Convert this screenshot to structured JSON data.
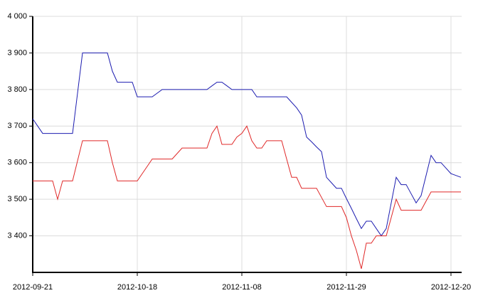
{
  "chart_data": {
    "type": "line",
    "categories": [
      "2012-09-21",
      null,
      null,
      null,
      null,
      null,
      null,
      null,
      null,
      null,
      null,
      null,
      null,
      null,
      null,
      null,
      null,
      null,
      null,
      null,
      null,
      "2012-10-18",
      null,
      null,
      null,
      null,
      null,
      null,
      null,
      null,
      null,
      null,
      null,
      null,
      null,
      null,
      null,
      null,
      null,
      null,
      null,
      null,
      "2012-11-08",
      null,
      null,
      null,
      null,
      null,
      null,
      null,
      null,
      null,
      null,
      null,
      null,
      null,
      null,
      null,
      null,
      null,
      null,
      null,
      null,
      "2012-11-29",
      null,
      null,
      null,
      null,
      null,
      null,
      null,
      null,
      null,
      null,
      null,
      null,
      null,
      null,
      null,
      null,
      null,
      null,
      null,
      null,
      "2012-12-20",
      null,
      null
    ],
    "series": [
      {
        "color": "#1c1cb0",
        "values": [
          3720,
          3700,
          3680,
          3680,
          3680,
          3680,
          3680,
          3680,
          3680,
          3790,
          3900,
          3900,
          3900,
          3900,
          3900,
          3900,
          3850,
          3820,
          3820,
          3820,
          3820,
          3780,
          3780,
          3780,
          3780,
          3790,
          3800,
          3800,
          3800,
          3800,
          3800,
          3800,
          3800,
          3800,
          3800,
          3800,
          3810,
          3820,
          3820,
          3810,
          3800,
          3800,
          3800,
          3800,
          3800,
          3780,
          3780,
          3780,
          3780,
          3780,
          3780,
          3780,
          3765,
          3750,
          3730,
          3670,
          3657,
          3643,
          3630,
          3560,
          3545,
          3530,
          3530,
          3502,
          3475,
          3447,
          3420,
          3440,
          3440,
          3420,
          3400,
          3420,
          3490,
          3560,
          3540,
          3540,
          3515,
          3490,
          3510,
          3565,
          3620,
          3600,
          3600,
          3585,
          3570,
          3565,
          3560
        ]
      },
      {
        "color": "#e02828",
        "values": [
          3550,
          3550,
          3550,
          3550,
          3550,
          3500,
          3550,
          3550,
          3550,
          3605,
          3660,
          3660,
          3660,
          3660,
          3660,
          3660,
          3600,
          3550,
          3550,
          3550,
          3550,
          3550,
          3570,
          3590,
          3610,
          3610,
          3610,
          3610,
          3610,
          3625,
          3640,
          3640,
          3640,
          3640,
          3640,
          3640,
          3680,
          3700,
          3650,
          3650,
          3650,
          3670,
          3680,
          3700,
          3660,
          3640,
          3640,
          3660,
          3660,
          3660,
          3660,
          3610,
          3560,
          3560,
          3530,
          3530,
          3530,
          3530,
          3505,
          3480,
          3480,
          3480,
          3480,
          3450,
          3400,
          3360,
          3310,
          3380,
          3380,
          3400,
          3400,
          3400,
          3450,
          3500,
          3470,
          3470,
          3470,
          3470,
          3470,
          3495,
          3520,
          3520,
          3520,
          3520,
          3520,
          3520,
          3520
        ]
      }
    ],
    "ylim": [
      3300,
      4000
    ],
    "yticks": [
      {
        "value": 3400,
        "label": "3 400"
      },
      {
        "value": 3500,
        "label": "3 500"
      },
      {
        "value": 3600,
        "label": "3 600"
      },
      {
        "value": 3700,
        "label": "3 700"
      },
      {
        "value": 3800,
        "label": "3 800"
      },
      {
        "value": 3900,
        "label": "3 900"
      },
      {
        "value": 4000,
        "label": "4 000"
      }
    ],
    "grid": true
  }
}
